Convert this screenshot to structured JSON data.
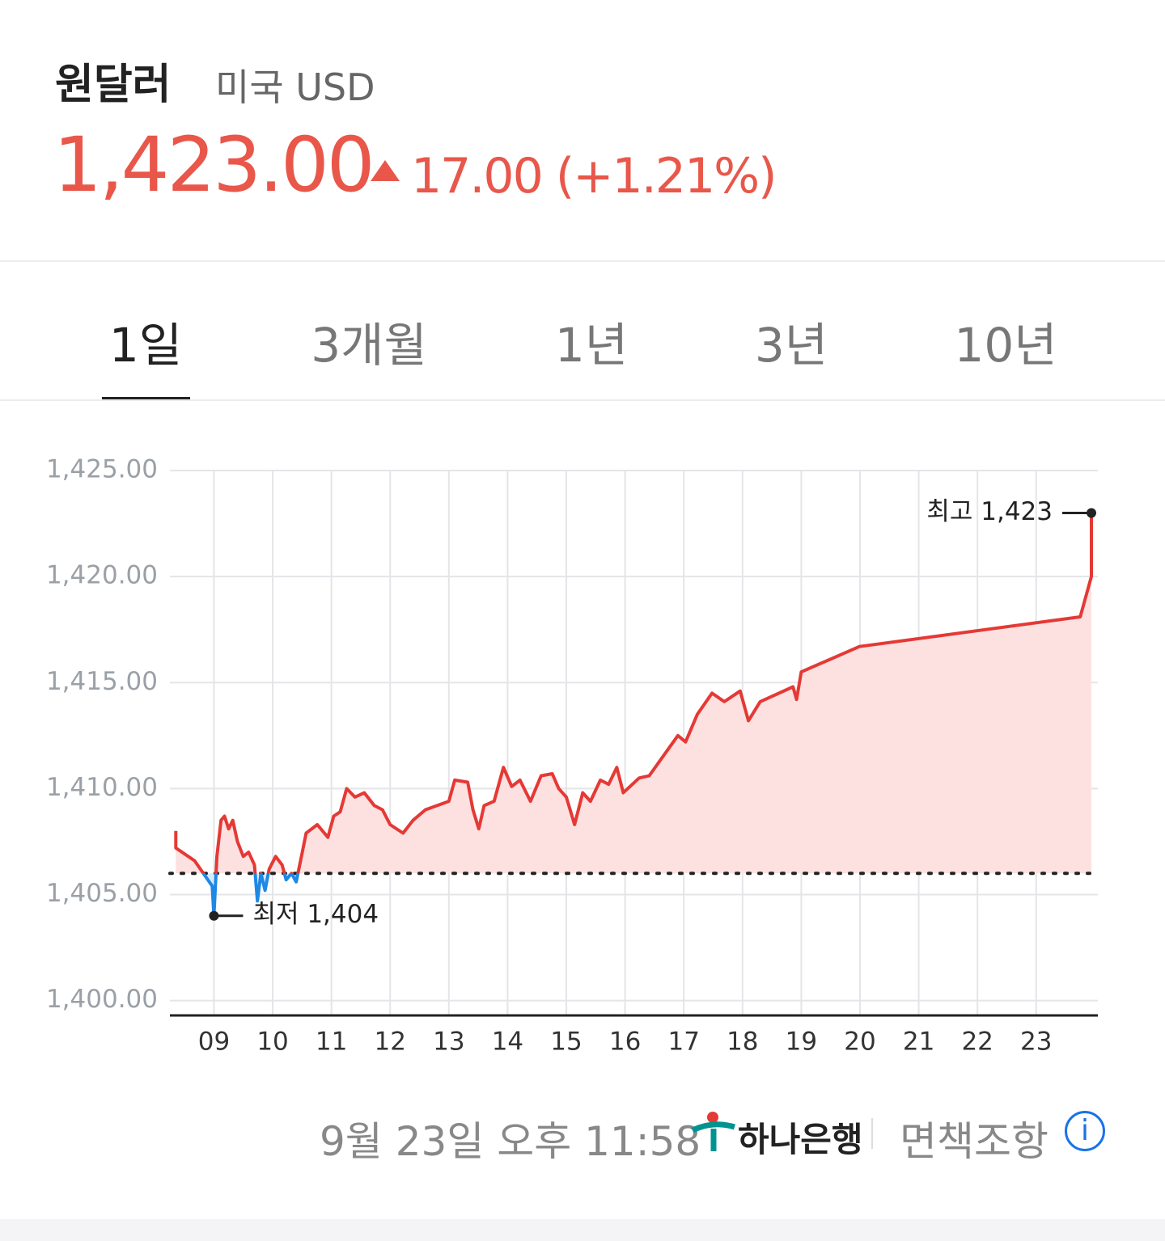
{
  "header": {
    "title": "원달러",
    "subtitle": "미국 USD",
    "price": "1,423.00",
    "change": "17.00",
    "change_percent": "(+1.21%)"
  },
  "tabs": {
    "items": [
      "1일",
      "3개월",
      "1년",
      "3년",
      "10년"
    ],
    "active": 0
  },
  "chart_data": {
    "type": "line",
    "x": [
      8.35,
      8.35,
      8.67,
      8.97,
      9.0,
      9.05,
      9.12,
      9.18,
      9.25,
      9.32,
      9.4,
      9.5,
      9.59,
      9.69,
      9.74,
      9.8,
      9.87,
      9.94,
      10.05,
      10.16,
      10.23,
      10.32,
      10.4,
      10.49,
      10.57,
      10.76,
      10.94,
      11.04,
      11.15,
      11.26,
      11.4,
      11.56,
      11.73,
      11.87,
      12.0,
      12.22,
      12.39,
      12.6,
      12.8,
      13.0,
      13.1,
      13.32,
      13.41,
      13.51,
      13.6,
      13.77,
      13.93,
      14.07,
      14.21,
      14.39,
      14.57,
      14.76,
      14.87,
      15.0,
      15.14,
      15.28,
      15.41,
      15.58,
      15.72,
      15.86,
      15.97,
      16.24,
      16.41,
      16.9,
      17.03,
      17.23,
      17.48,
      17.69,
      17.96,
      18.1,
      18.3,
      18.86,
      18.92,
      19.0,
      19.99,
      23.75,
      23.94,
      23.94
    ],
    "series": [
      {
        "color": "#e53935",
        "below_color": "#1e88e5",
        "fill": "#fde1e1",
        "below_fill": "#d8e9fb",
        "values": [
          1408.0,
          1407.2,
          1406.6,
          1405.4,
          1404.0,
          1406.8,
          1408.5,
          1408.7,
          1408.1,
          1408.5,
          1407.5,
          1406.8,
          1407.0,
          1406.4,
          1404.7,
          1406.0,
          1405.2,
          1406.2,
          1406.8,
          1406.4,
          1405.7,
          1406.0,
          1405.6,
          1406.8,
          1407.9,
          1408.3,
          1407.7,
          1408.7,
          1408.9,
          1410.0,
          1409.6,
          1409.8,
          1409.2,
          1409.0,
          1408.3,
          1407.9,
          1408.5,
          1409.0,
          1409.2,
          1409.4,
          1410.4,
          1410.3,
          1409.0,
          1408.1,
          1409.2,
          1409.4,
          1411.0,
          1410.1,
          1410.4,
          1409.4,
          1410.6,
          1410.7,
          1410.0,
          1409.6,
          1408.3,
          1409.8,
          1409.4,
          1410.4,
          1410.2,
          1411.0,
          1409.8,
          1410.5,
          1410.6,
          1412.5,
          1412.2,
          1413.5,
          1414.5,
          1414.1,
          1414.6,
          1413.2,
          1414.1,
          1414.8,
          1414.2,
          1415.5,
          1416.7,
          1418.1,
          1420.0,
          1423.0
        ]
      }
    ],
    "baseline": 1406,
    "xlim": [
      8.25,
      24.05
    ],
    "xticks": [
      {
        "value": 9,
        "label": "09"
      },
      10,
      11,
      12,
      13,
      14,
      15,
      16,
      17,
      18,
      19,
      20,
      21,
      22,
      23
    ],
    "ylim": [
      1399.3,
      1425
    ],
    "yticks": [
      {
        "value": 1400,
        "label": "1,400.00"
      },
      {
        "value": 1405,
        "label": "1,405.00"
      },
      {
        "value": 1410,
        "label": "1,410.00"
      },
      {
        "value": 1415,
        "label": "1,415.00"
      },
      {
        "value": 1420,
        "label": "1,420.00"
      },
      {
        "value": 1425,
        "label": "1,425.00"
      }
    ],
    "grid": true,
    "annotations": [
      {
        "label": "최고 1,423",
        "x": 23.94,
        "value": 1423,
        "side": "left"
      },
      {
        "label": "최저 1,404",
        "x": 9.0,
        "value": 1404,
        "side": "right"
      }
    ]
  },
  "footer": {
    "timestamp": "9월 23일 오후 11:58",
    "bank": "하나은행",
    "disclaimer": "면책조항"
  }
}
